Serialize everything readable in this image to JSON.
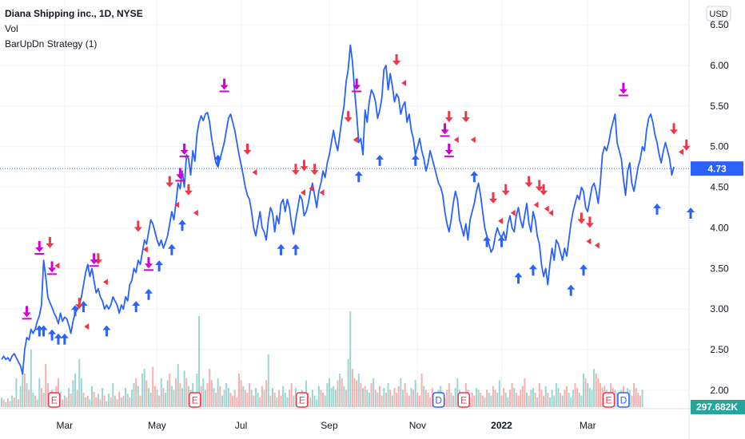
{
  "legend": {
    "symbol": "Diana Shipping inc., 1D, NYSE",
    "vol": "Vol",
    "strategy": "BarUpDn Strategy (1)"
  },
  "currency": "USD",
  "colors": {
    "line": "#2962ff",
    "price_label_bg": "#2962ff",
    "vol_label_bg": "#26a69a",
    "vol_up": "#26a69a",
    "vol_down": "#ef5350",
    "buy": "#2962ff",
    "sell": "#f23645",
    "close": "#d100d1",
    "grid": "#f0f3fa",
    "axis_text": "#131722",
    "earnings": "#f23645",
    "dividend": "#2962ff",
    "combo_e": "#089981"
  },
  "chart_data": {
    "type": "line",
    "x_ticks": [
      "Mar",
      "May",
      "Jul",
      "Sep",
      "Nov",
      "2022",
      "Mar"
    ],
    "y_ticks": [
      "6.50",
      "6.00",
      "5.50",
      "5.00",
      "4.50",
      "4.00",
      "3.50",
      "3.00",
      "2.50",
      "2.00"
    ],
    "ylim": [
      1.95,
      6.55
    ],
    "last_price_label": "4.73",
    "last_price": 4.73,
    "volume_label": "297.682K",
    "series": [
      {
        "values": [
          2.38,
          2.42,
          2.38,
          2.4,
          2.36,
          2.42,
          2.45,
          2.4,
          2.35,
          2.3,
          2.2,
          2.5,
          2.65,
          2.62,
          2.75,
          2.7,
          2.75,
          2.85,
          2.92,
          3.05,
          3.6,
          3.4,
          3.15,
          3.08,
          3.02,
          2.95,
          2.9,
          2.82,
          2.95,
          2.85,
          2.9,
          2.88,
          2.8,
          2.7,
          2.85,
          2.95,
          3.0,
          3.05,
          3.15,
          3.3,
          3.45,
          3.55,
          3.4,
          3.5,
          3.35,
          3.2,
          3.25,
          3.15,
          3.1,
          3.0,
          3.05,
          3.0,
          3.05,
          3.15,
          3.1,
          3.05,
          2.95,
          3.05,
          3.0,
          3.15,
          3.1,
          3.3,
          3.35,
          3.5,
          3.45,
          3.6,
          3.55,
          3.7,
          3.85,
          3.8,
          3.95,
          4.1,
          4.05,
          3.95,
          3.85,
          3.78,
          3.85,
          3.75,
          3.82,
          3.9,
          4.05,
          4.2,
          4.1,
          4.3,
          4.55,
          4.48,
          4.7,
          4.5,
          4.9,
          4.85,
          4.65,
          4.95,
          4.82,
          5.15,
          5.3,
          5.38,
          5.32,
          5.4,
          5.42,
          5.3,
          5.1,
          4.95,
          4.8,
          4.75,
          4.85,
          4.95,
          5.05,
          5.2,
          5.35,
          5.4,
          5.3,
          5.2,
          5.05,
          4.9,
          4.78,
          4.65,
          4.5,
          4.4,
          4.35,
          4.2,
          4.0,
          3.9,
          4.05,
          4.2,
          4.0,
          3.95,
          3.85,
          4.1,
          4.25,
          4.18,
          3.95,
          4.15,
          4.05,
          4.3,
          4.35,
          4.2,
          4.35,
          4.25,
          4.05,
          3.92,
          4.1,
          4.25,
          4.4,
          4.35,
          4.15,
          4.2,
          4.3,
          4.45,
          4.55,
          4.4,
          4.25,
          4.45,
          4.55,
          4.7,
          4.62,
          4.8,
          4.9,
          5.05,
          5.2,
          5.05,
          4.95,
          5.15,
          5.35,
          5.5,
          5.8,
          5.95,
          6.25,
          6.05,
          5.7,
          5.4,
          5.05,
          5.1,
          4.9,
          5.45,
          5.3,
          5.55,
          5.7,
          5.65,
          5.55,
          5.35,
          5.45,
          5.6,
          5.95,
          6.0,
          5.7,
          5.9,
          5.75,
          5.55,
          5.65,
          5.6,
          5.4,
          5.5,
          5.55,
          5.3,
          5.4,
          5.2,
          5.1,
          4.9,
          5.0,
          5.1,
          4.95,
          4.85,
          4.7,
          4.8,
          4.95,
          4.85,
          4.75,
          4.65,
          4.55,
          4.5,
          4.4,
          4.2,
          4.05,
          3.95,
          4.1,
          4.3,
          4.45,
          4.35,
          4.1,
          4.0,
          3.9,
          4.05,
          3.85,
          4.1,
          4.2,
          4.3,
          4.45,
          4.55,
          4.4,
          4.2,
          4.0,
          3.9,
          3.8,
          3.7,
          3.75,
          3.9,
          4.0,
          3.92,
          3.88,
          3.95,
          3.85,
          4.05,
          4.15,
          4.0,
          3.95,
          4.15,
          4.25,
          4.1,
          4.0,
          4.15,
          4.3,
          4.05,
          3.95,
          4.2,
          4.1,
          3.9,
          3.8,
          3.55,
          3.4,
          3.5,
          3.3,
          3.55,
          3.75,
          3.6,
          3.85,
          3.8,
          3.7,
          3.6,
          3.75,
          3.65,
          3.85,
          4.05,
          4.2,
          4.3,
          4.4,
          4.35,
          4.5,
          4.45,
          4.25,
          4.2,
          4.35,
          4.5,
          4.55,
          4.45,
          4.3,
          4.55,
          4.9,
          5.0,
          4.95,
          5.05,
          5.2,
          5.3,
          5.4,
          5.05,
          4.95,
          4.85,
          4.6,
          4.4,
          4.7,
          4.8,
          4.55,
          4.45,
          4.6,
          4.75,
          4.85,
          5.0,
          4.95,
          5.2,
          5.35,
          5.4,
          5.3,
          5.15,
          5.05,
          4.9,
          4.8,
          4.95,
          5.05,
          4.95,
          4.85,
          4.65,
          4.75
        ]
      }
    ],
    "volume": {
      "values": [
        0.1,
        0.08,
        0.05,
        0.09,
        0.06,
        0.12,
        0.1,
        0.3,
        0.08,
        0.22,
        0.4,
        0.35,
        0.25,
        0.18,
        0.6,
        0.15,
        0.12,
        0.08,
        0.3,
        0.2,
        0.15,
        0.45,
        0.25,
        0.12,
        0.18,
        0.1,
        0.22,
        0.3,
        0.16,
        0.08,
        0.12,
        0.1,
        0.2,
        0.14,
        0.28,
        0.35,
        0.18,
        0.5,
        0.3,
        0.15,
        0.1,
        0.12,
        0.08,
        0.22,
        0.16,
        0.1,
        0.14,
        0.08,
        0.2,
        0.12,
        0.06,
        0.14,
        0.1,
        0.25,
        0.12,
        0.08,
        0.16,
        0.1,
        0.12,
        0.2,
        0.14,
        0.1,
        0.18,
        0.25,
        0.3,
        0.22,
        0.12,
        0.35,
        0.4,
        0.28,
        0.2,
        0.15,
        0.42,
        0.22,
        0.18,
        0.12,
        0.3,
        0.2,
        0.15,
        0.28,
        0.35,
        0.22,
        0.18,
        0.3,
        0.45,
        0.25,
        0.2,
        0.38,
        0.3,
        0.22,
        0.18,
        0.25,
        0.12,
        0.35,
        0.95,
        0.22,
        0.3,
        0.18,
        0.25,
        0.4,
        0.28,
        0.2,
        0.15,
        0.3,
        0.22,
        0.12,
        0.18,
        0.25,
        0.2,
        0.15,
        0.12,
        0.18,
        0.1,
        0.35,
        0.28,
        0.22,
        0.18,
        0.15,
        0.25,
        0.18,
        0.12,
        0.2,
        0.15,
        0.1,
        0.22,
        0.18,
        0.28,
        0.55,
        0.12,
        0.2,
        0.15,
        0.1,
        0.18,
        0.12,
        0.22,
        0.15,
        0.1,
        0.18,
        0.25,
        0.12,
        0.2,
        0.15,
        0.1,
        0.18,
        0.12,
        0.28,
        0.15,
        0.1,
        0.18,
        0.12,
        0.08,
        0.22,
        0.18,
        0.15,
        0.12,
        0.25,
        0.3,
        0.2,
        0.22,
        0.18,
        0.28,
        0.35,
        0.3,
        0.22,
        0.18,
        0.5,
        1.0,
        0.4,
        0.3,
        0.28,
        0.35,
        0.25,
        0.2,
        0.22,
        0.18,
        0.15,
        0.25,
        0.3,
        0.18,
        0.15,
        0.22,
        0.12,
        0.2,
        0.15,
        0.25,
        0.18,
        0.12,
        0.2,
        0.15,
        0.22,
        0.3,
        0.18,
        0.25,
        0.15,
        0.12,
        0.2,
        0.18,
        0.28,
        0.15,
        0.12,
        0.35,
        0.22,
        0.18,
        0.15,
        0.1,
        0.2,
        0.15,
        0.12,
        0.18,
        0.22,
        0.15,
        0.1,
        0.18,
        0.25,
        0.15,
        0.12,
        0.2,
        0.3,
        0.18,
        0.15,
        0.12,
        0.25,
        0.18,
        0.1,
        0.15,
        0.12,
        0.2,
        0.18,
        0.15,
        0.12,
        0.1,
        0.18,
        0.15,
        0.12,
        0.22,
        0.18,
        0.15,
        0.28,
        0.12,
        0.2,
        0.15,
        0.1,
        0.18,
        0.25,
        0.2,
        0.15,
        0.12,
        0.18,
        0.22,
        0.3,
        0.15,
        0.12,
        0.18,
        0.2,
        0.15,
        0.1,
        0.25,
        0.18,
        0.12,
        0.22,
        0.15,
        0.1,
        0.18,
        0.12,
        0.25,
        0.2,
        0.15,
        0.12,
        0.18,
        0.22,
        0.15,
        0.1,
        0.18,
        0.25,
        0.2,
        0.15,
        0.12,
        0.35,
        0.3,
        0.25,
        0.2,
        0.18,
        0.4,
        0.35,
        0.3,
        0.25,
        0.2,
        0.22,
        0.18,
        0.15,
        0.25,
        0.2,
        0.18,
        0.15,
        0.12,
        0.18,
        0.22,
        0.15,
        0.2,
        0.18,
        0.12,
        0.25,
        0.2,
        0.15,
        0.12,
        0.18
      ],
      "up": [
        1,
        0,
        1,
        0,
        1,
        1,
        0,
        1,
        0,
        1,
        1,
        0,
        1,
        0,
        1,
        1,
        0,
        1,
        1,
        0,
        1,
        0,
        0,
        1,
        0,
        1,
        0,
        0,
        1,
        0,
        1,
        0,
        1,
        0,
        1,
        1,
        0,
        1,
        1,
        0,
        1,
        0,
        1,
        1,
        0,
        0,
        1,
        0,
        1,
        0,
        1,
        1,
        0,
        1,
        0,
        1,
        0,
        1,
        0,
        1,
        1,
        0,
        1,
        1,
        0,
        1,
        0,
        1,
        1,
        0,
        1,
        1,
        0,
        0,
        1,
        0,
        1,
        0,
        1,
        1,
        0,
        1,
        1,
        0,
        1,
        0,
        1,
        1,
        0,
        1,
        0,
        1,
        0,
        1,
        1,
        0,
        1,
        1,
        0,
        0,
        0,
        1,
        0,
        1,
        0,
        1,
        1,
        1,
        1,
        0,
        0,
        0,
        0,
        0,
        0,
        1,
        0,
        0,
        0,
        1,
        0,
        1,
        1,
        0,
        0,
        1,
        0,
        1,
        0,
        1,
        0,
        1,
        0,
        0,
        1,
        1,
        1,
        0,
        0,
        1,
        1,
        1,
        1,
        0,
        1,
        1,
        1,
        0,
        1,
        1,
        1,
        1,
        0,
        0,
        1,
        1,
        1,
        1,
        1,
        1,
        0,
        1,
        0,
        1,
        0,
        1,
        1,
        0,
        0,
        0,
        1,
        0,
        1,
        0,
        1,
        1,
        0,
        1,
        0,
        1,
        0,
        0,
        1,
        0,
        1,
        0,
        1,
        0,
        0,
        0,
        1,
        1,
        0,
        0,
        0,
        1,
        0,
        1,
        0,
        0,
        0,
        1,
        0,
        0,
        0,
        0,
        0,
        1,
        1,
        1,
        0,
        0,
        0,
        0,
        1,
        0,
        1,
        1,
        1,
        1,
        0,
        0,
        0,
        0,
        0,
        0,
        1,
        1,
        0,
        0,
        1,
        0,
        1,
        1,
        0,
        0,
        1,
        1,
        0,
        0,
        1,
        1,
        0,
        0,
        1,
        0,
        0,
        0,
        0,
        0,
        1,
        0,
        1,
        1,
        0,
        1,
        0,
        0,
        0,
        1,
        0,
        1,
        1,
        1,
        1,
        1,
        0,
        1,
        0,
        0,
        1,
        1,
        1,
        0,
        0,
        1,
        1,
        1,
        0,
        1,
        1,
        1,
        1,
        0,
        0,
        0,
        0,
        0,
        1,
        1,
        0,
        0,
        1,
        1,
        1,
        1,
        0,
        1,
        1,
        1,
        0,
        0,
        0,
        0,
        0,
        1,
        1,
        0,
        0,
        0,
        1
      ]
    },
    "buy_signals": [
      {
        "i": 18,
        "v": 2.8
      },
      {
        "i": 20,
        "v": 2.8
      },
      {
        "i": 24,
        "v": 2.75
      },
      {
        "i": 27,
        "v": 2.7
      },
      {
        "i": 30,
        "v": 2.7
      },
      {
        "i": 35,
        "v": 3.05
      },
      {
        "i": 39,
        "v": 3.1
      },
      {
        "i": 50,
        "v": 2.8
      },
      {
        "i": 64,
        "v": 3.1
      },
      {
        "i": 70,
        "v": 3.25
      },
      {
        "i": 75,
        "v": 3.6
      },
      {
        "i": 81,
        "v": 3.8
      },
      {
        "i": 86,
        "v": 4.1
      },
      {
        "i": 103,
        "v": 4.9
      },
      {
        "i": 133,
        "v": 3.8
      },
      {
        "i": 140,
        "v": 3.8
      },
      {
        "i": 170,
        "v": 4.7
      },
      {
        "i": 180,
        "v": 4.9
      },
      {
        "i": 197,
        "v": 4.9
      },
      {
        "i": 225,
        "v": 4.7
      },
      {
        "i": 231,
        "v": 3.9
      },
      {
        "i": 238,
        "v": 3.9
      },
      {
        "i": 246,
        "v": 3.45
      },
      {
        "i": 253,
        "v": 3.55
      },
      {
        "i": 271,
        "v": 3.3
      },
      {
        "i": 277,
        "v": 3.55
      },
      {
        "i": 312,
        "v": 4.3
      },
      {
        "i": 328,
        "v": 4.25
      }
    ],
    "sell_signals": [
      {
        "i": 23,
        "v": 3.75
      },
      {
        "i": 37,
        "v": 3.0
      },
      {
        "i": 46,
        "v": 3.55
      },
      {
        "i": 65,
        "v": 3.95
      },
      {
        "i": 80,
        "v": 4.5
      },
      {
        "i": 89,
        "v": 4.4
      },
      {
        "i": 117,
        "v": 4.9
      },
      {
        "i": 140,
        "v": 4.65
      },
      {
        "i": 144,
        "v": 4.7
      },
      {
        "i": 149,
        "v": 4.65
      },
      {
        "i": 165,
        "v": 5.3
      },
      {
        "i": 188,
        "v": 6.0
      },
      {
        "i": 213,
        "v": 5.3
      },
      {
        "i": 221,
        "v": 5.3
      },
      {
        "i": 234,
        "v": 4.3
      },
      {
        "i": 240,
        "v": 4.4
      },
      {
        "i": 251,
        "v": 4.5
      },
      {
        "i": 256,
        "v": 4.45
      },
      {
        "i": 258,
        "v": 4.4
      },
      {
        "i": 276,
        "v": 4.05
      },
      {
        "i": 280,
        "v": 4.0
      },
      {
        "i": 320,
        "v": 5.15
      },
      {
        "i": 326,
        "v": 4.95
      }
    ],
    "close_signals": [
      {
        "i": 12,
        "v": 2.9
      },
      {
        "i": 18,
        "v": 3.7
      },
      {
        "i": 24,
        "v": 3.45
      },
      {
        "i": 44,
        "v": 3.55
      },
      {
        "i": 70,
        "v": 3.5
      },
      {
        "i": 85,
        "v": 4.6
      },
      {
        "i": 87,
        "v": 4.9
      },
      {
        "i": 106,
        "v": 5.7
      },
      {
        "i": 169,
        "v": 5.7
      },
      {
        "i": 211,
        "v": 5.15
      },
      {
        "i": 213,
        "v": 4.9
      },
      {
        "i": 296,
        "v": 5.65
      }
    ],
    "markers": [
      {
        "type": "E",
        "i": 25
      },
      {
        "type": "E",
        "i": 92
      },
      {
        "type": "E",
        "i": 143
      },
      {
        "type": "D",
        "i": 208
      },
      {
        "type": "E",
        "i": 220
      },
      {
        "type": "E",
        "i": 289
      },
      {
        "type": "D",
        "i": 296
      }
    ]
  }
}
